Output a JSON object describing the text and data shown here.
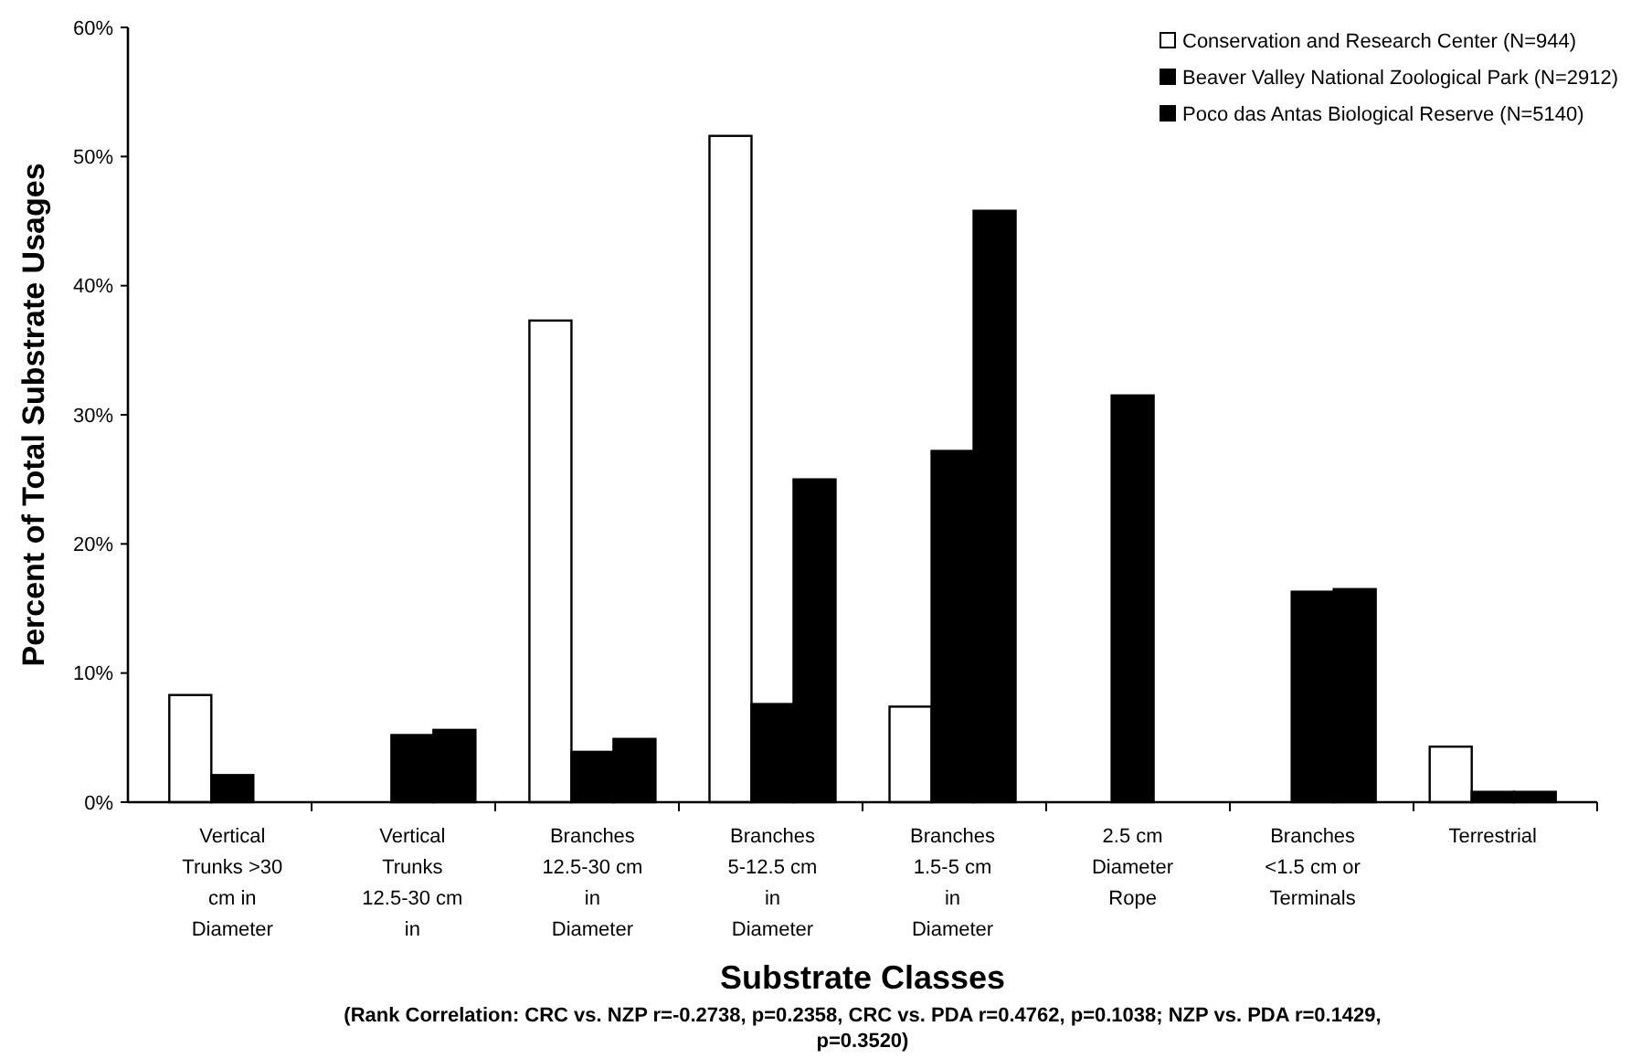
{
  "chart_data": {
    "type": "bar",
    "xlabel": "Substrate Classes",
    "ylabel": "Percent of Total Substrate Usages",
    "categories": [
      "Vertical Trunks >30 cm in Diameter",
      "Vertical Trunks 12.5-30 cm in",
      "Branches 12.5-30 cm in Diameter",
      "Branches 5-12.5 cm in Diameter",
      "Branches 1.5-5 cm in Diameter",
      "2.5 cm Diameter Rope",
      "Branches <1.5 cm or Terminals",
      "Terrestrial"
    ],
    "series": [
      {
        "name": "Conservation and Research Center (N=944)",
        "color": "#ffffff",
        "values": [
          8.3,
          null,
          37.3,
          51.6,
          7.4,
          null,
          null,
          4.3
        ]
      },
      {
        "name": "Beaver Valley  National Zoological Park (N=2912)",
        "color": "#000000",
        "values": [
          2.1,
          5.2,
          3.9,
          7.6,
          27.2,
          31.5,
          16.3,
          0.8
        ]
      },
      {
        "name": "Poco das Antas Biological Reserve (N=5140)",
        "color": "#000000",
        "values": [
          null,
          5.6,
          4.9,
          25.0,
          45.8,
          null,
          16.5,
          0.8
        ]
      }
    ],
    "ylim": [
      0,
      60
    ],
    "yticks": [
      {
        "value": 0,
        "label": "0%"
      },
      {
        "value": 10,
        "label": "10%"
      },
      {
        "value": 20,
        "label": "20%"
      },
      {
        "value": 30,
        "label": "30%"
      },
      {
        "value": 40,
        "label": "40%"
      },
      {
        "value": 50,
        "label": "50%"
      },
      {
        "value": 60,
        "label": "60%"
      }
    ],
    "legend": "top right",
    "grid": false,
    "annotations": [
      "(Rank Correlation: CRC vs. NZP r=-0.2738, p=0.2358, CRC vs. PDA r=0.4762, p=0.1038; NZP vs. PDA r=0.1429, p=0.3520)"
    ]
  }
}
